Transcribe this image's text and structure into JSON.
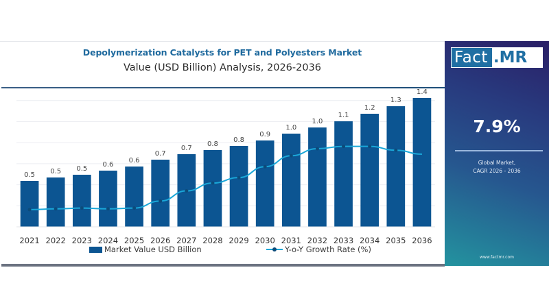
{
  "header": {
    "title": "Depolymerization Catalysts for PET and Polyesters Market",
    "subtitle": "Value (USD Billion) Analysis, 2026-2036"
  },
  "side_panel": {
    "logo_left": "Fact",
    "logo_right": ".MR",
    "cagr_value": "7.9%",
    "caption_line1": "Global Market,",
    "caption_line2": "CAGR 2026 - 2036",
    "url": "www.factmr.com"
  },
  "legend": {
    "bar_label": "Market Value USD Billion",
    "line_label": "Y-o-Y Growth Rate (%)"
  },
  "colors": {
    "bar": "#0c5592",
    "line": "#1aa7d8",
    "marker": "#0c4b7a",
    "grid": "#eceef2"
  },
  "chart_data": {
    "type": "bar",
    "title": "Depolymerization Catalysts for PET and Polyesters Market",
    "subtitle": "Value (USD Billion) Analysis, 2026-2036",
    "xlabel": "",
    "ylabel": "",
    "categories": [
      "2021",
      "2022",
      "2023",
      "2024",
      "2025",
      "2026",
      "2027",
      "2028",
      "2029",
      "2030",
      "2031",
      "2032",
      "2033",
      "2034",
      "2035",
      "2036"
    ],
    "series": [
      {
        "name": "Market Value USD Billion",
        "type": "bar",
        "values": [
          0.5,
          0.5,
          0.5,
          0.6,
          0.6,
          0.7,
          0.7,
          0.8,
          0.8,
          0.9,
          1.0,
          1.0,
          1.1,
          1.2,
          1.3,
          1.4
        ],
        "labels": [
          "0.5",
          "0.5",
          "0.5",
          "0.6",
          "0.6",
          "0.7",
          "0.7",
          "0.8",
          "0.8",
          "0.9",
          "1.0",
          "1.0",
          "1.1",
          "1.2",
          "1.3",
          "1.4"
        ]
      },
      {
        "name": "Y-o-Y Growth Rate (%)",
        "type": "line",
        "relative_values": [
          0.22,
          0.23,
          0.24,
          0.23,
          0.24,
          0.33,
          0.46,
          0.56,
          0.63,
          0.77,
          0.91,
          1.0,
          1.03,
          1.03,
          0.98,
          0.93
        ],
        "note": "secondary axis unlabeled; relative shape only"
      }
    ],
    "ylim": [
      0,
      1.8
    ],
    "grid": true,
    "legend_position": "bottom"
  }
}
